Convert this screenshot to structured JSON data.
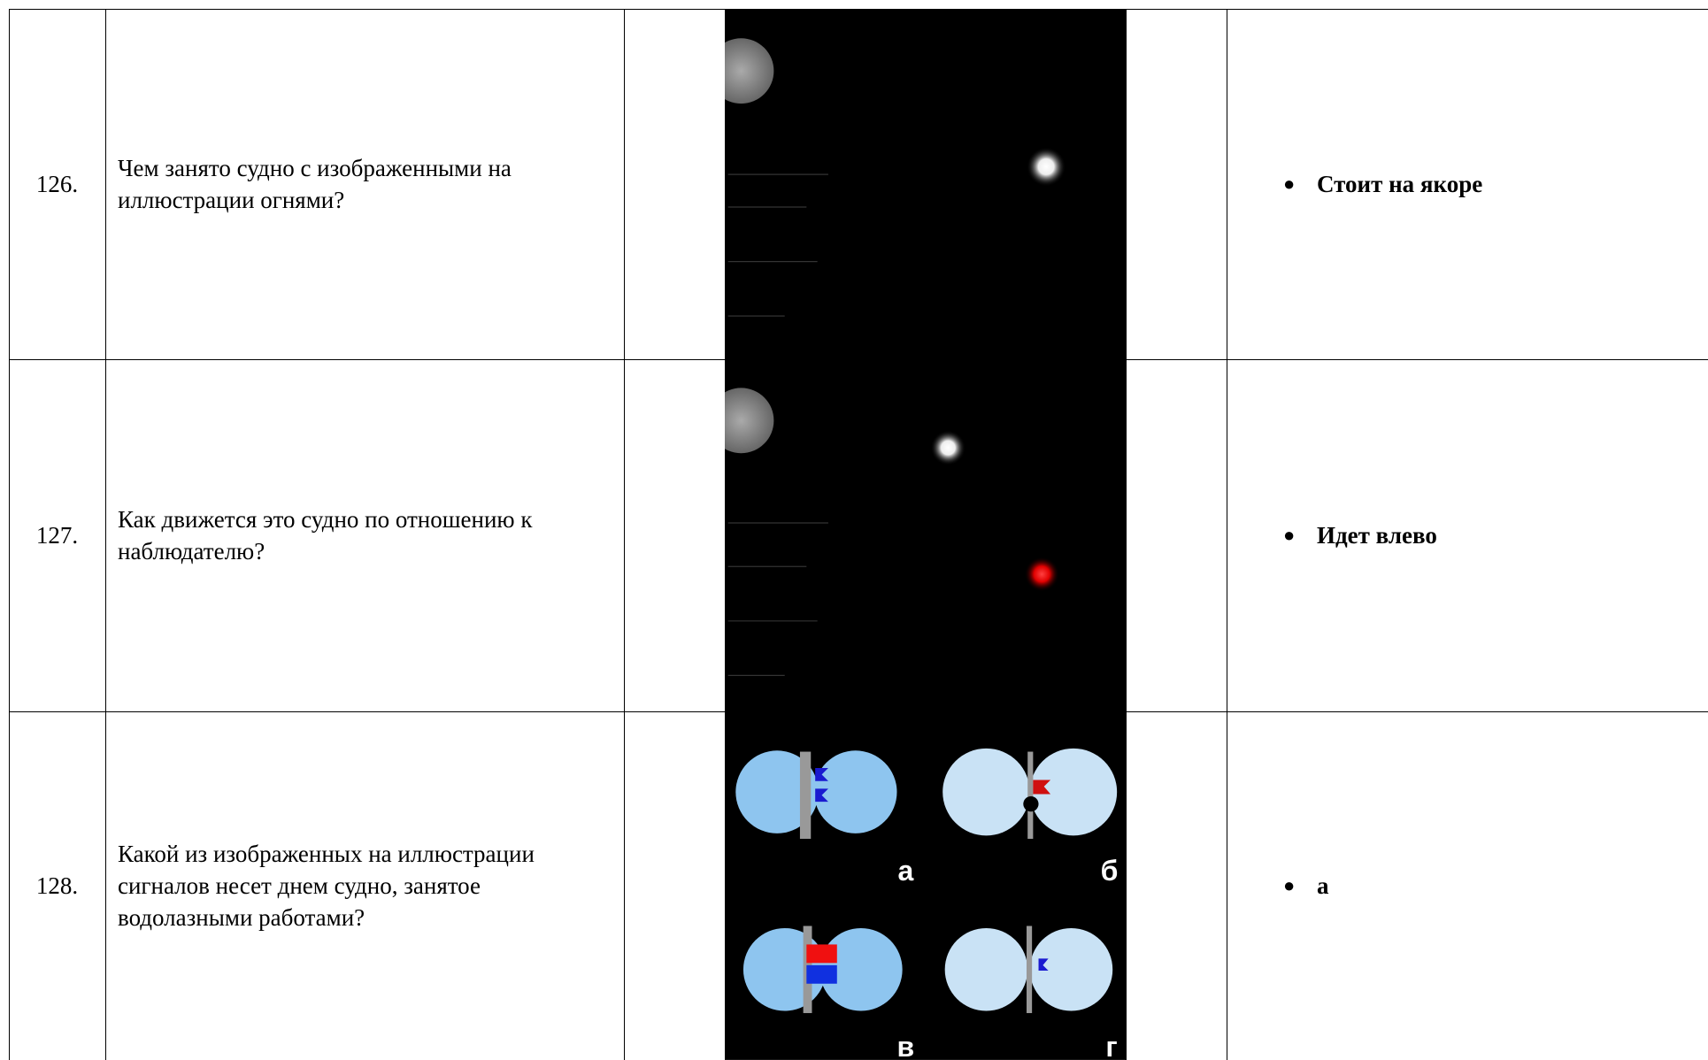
{
  "table": {
    "rows": [
      {
        "number": "126.",
        "question": "Чем занято судно с изображенными на иллюстрации огнями?",
        "answer": "Стоит на якоре"
      },
      {
        "number": "127.",
        "question": "Как движется это судно по отношению к наблюдателю?",
        "answer": "Идет влево"
      },
      {
        "number": "128.",
        "question": "Какой из изображенных на иллюстрации сигналов несет днем судно, занятое водолазными работами?",
        "answer": "а",
        "image_labels": [
          "а",
          "б",
          "в",
          "г"
        ]
      }
    ]
  }
}
